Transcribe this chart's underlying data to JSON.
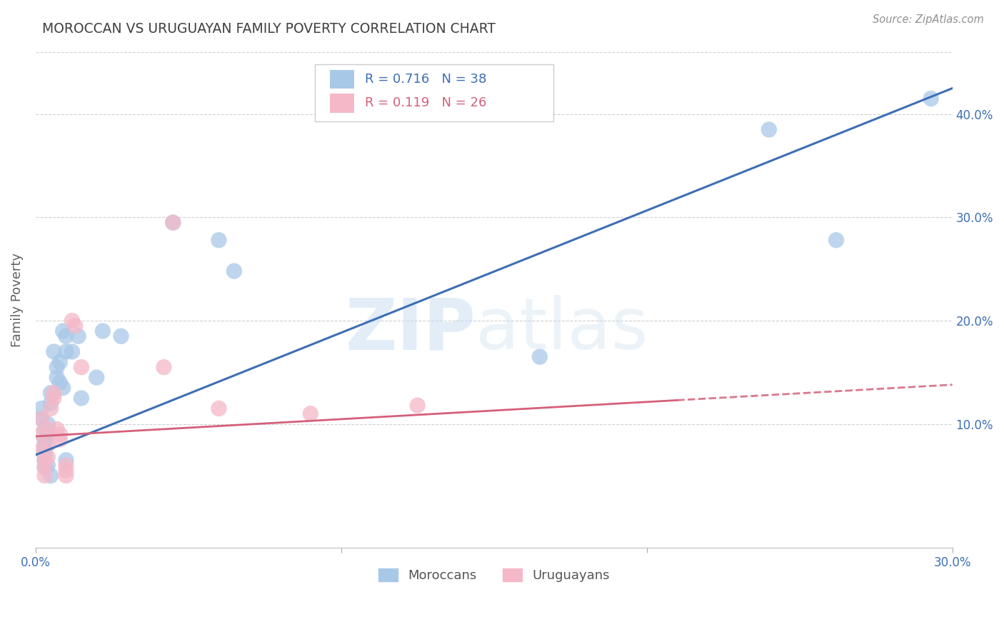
{
  "title": "MOROCCAN VS URUGUAYAN FAMILY POVERTY CORRELATION CHART",
  "source": "Source: ZipAtlas.com",
  "ylabel": "Family Poverty",
  "xlim": [
    0.0,
    0.3
  ],
  "ylim": [
    -0.02,
    0.46
  ],
  "xticks": [
    0.0,
    0.1,
    0.2,
    0.3
  ],
  "xticklabels": [
    "0.0%",
    "",
    "",
    "30.0%"
  ],
  "yticks_right": [
    0.1,
    0.2,
    0.3,
    0.4
  ],
  "ytick_right_labels": [
    "10.0%",
    "20.0%",
    "30.0%",
    "40.0%"
  ],
  "legend_entries": [
    {
      "label": "R = 0.716   N = 38",
      "color": "#6fa8dc"
    },
    {
      "label": "R = 0.119   N = 26",
      "color": "#ea9999"
    }
  ],
  "moroccan_scatter": [
    [
      0.002,
      0.115
    ],
    [
      0.002,
      0.105
    ],
    [
      0.003,
      0.095
    ],
    [
      0.003,
      0.085
    ],
    [
      0.003,
      0.08
    ],
    [
      0.003,
      0.075
    ],
    [
      0.003,
      0.07
    ],
    [
      0.003,
      0.065
    ],
    [
      0.003,
      0.058
    ],
    [
      0.004,
      0.1
    ],
    [
      0.004,
      0.09
    ],
    [
      0.004,
      0.06
    ],
    [
      0.005,
      0.13
    ],
    [
      0.005,
      0.12
    ],
    [
      0.005,
      0.05
    ],
    [
      0.006,
      0.17
    ],
    [
      0.007,
      0.155
    ],
    [
      0.007,
      0.145
    ],
    [
      0.008,
      0.16
    ],
    [
      0.008,
      0.14
    ],
    [
      0.009,
      0.19
    ],
    [
      0.009,
      0.135
    ],
    [
      0.01,
      0.185
    ],
    [
      0.01,
      0.17
    ],
    [
      0.01,
      0.065
    ],
    [
      0.012,
      0.17
    ],
    [
      0.014,
      0.185
    ],
    [
      0.015,
      0.125
    ],
    [
      0.02,
      0.145
    ],
    [
      0.022,
      0.19
    ],
    [
      0.028,
      0.185
    ],
    [
      0.045,
      0.295
    ],
    [
      0.06,
      0.278
    ],
    [
      0.065,
      0.248
    ],
    [
      0.165,
      0.165
    ],
    [
      0.24,
      0.385
    ],
    [
      0.262,
      0.278
    ],
    [
      0.293,
      0.415
    ]
  ],
  "uruguayan_scatter": [
    [
      0.002,
      0.105
    ],
    [
      0.002,
      0.09
    ],
    [
      0.002,
      0.075
    ],
    [
      0.003,
      0.065
    ],
    [
      0.003,
      0.058
    ],
    [
      0.003,
      0.05
    ],
    [
      0.004,
      0.095
    ],
    [
      0.004,
      0.08
    ],
    [
      0.004,
      0.068
    ],
    [
      0.005,
      0.115
    ],
    [
      0.006,
      0.13
    ],
    [
      0.006,
      0.125
    ],
    [
      0.007,
      0.095
    ],
    [
      0.008,
      0.09
    ],
    [
      0.008,
      0.085
    ],
    [
      0.01,
      0.06
    ],
    [
      0.01,
      0.055
    ],
    [
      0.01,
      0.05
    ],
    [
      0.012,
      0.2
    ],
    [
      0.013,
      0.195
    ],
    [
      0.015,
      0.155
    ],
    [
      0.042,
      0.155
    ],
    [
      0.06,
      0.115
    ],
    [
      0.09,
      0.11
    ],
    [
      0.125,
      0.118
    ],
    [
      0.045,
      0.295
    ]
  ],
  "moroccan_line": [
    [
      0.0,
      0.07
    ],
    [
      0.3,
      0.425
    ]
  ],
  "uruguayan_line": [
    [
      0.0,
      0.088
    ],
    [
      0.3,
      0.138
    ]
  ],
  "uruguayan_line_solid_end": 0.21,
  "blue_color": "#3d6fb5",
  "pink_color": "#d4607a",
  "blue_scatter_color": "#a8c8e8",
  "pink_scatter_color": "#f4b8c8",
  "watermark_zip": "ZIP",
  "watermark_atlas": "atlas",
  "bottom_legend": [
    "Moroccans",
    "Uruguayans"
  ],
  "bottom_legend_colors": [
    "#a8c8e8",
    "#f4b8c8"
  ],
  "legend_patch_blue": "#a8c8e8",
  "legend_patch_pink": "#f4b8c8",
  "legend_text_blue": "#3d6fb5",
  "legend_text_pink": "#d4607a",
  "grid_color": "#d0d0d0",
  "title_color": "#404040",
  "source_color": "#909090",
  "ylabel_color": "#606060"
}
